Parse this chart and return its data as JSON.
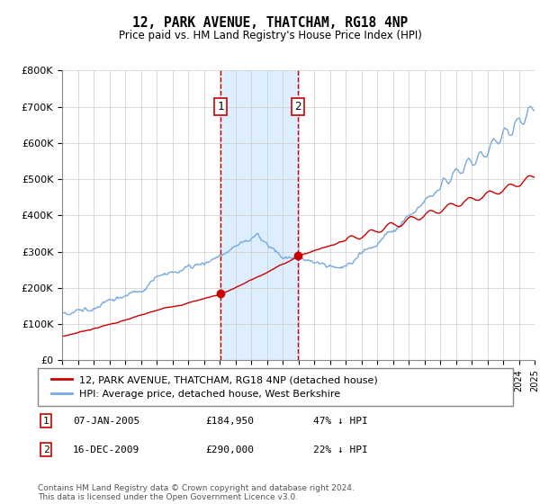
{
  "title": "12, PARK AVENUE, THATCHAM, RG18 4NP",
  "subtitle": "Price paid vs. HM Land Registry's House Price Index (HPI)",
  "x_start_year": 1995,
  "x_end_year": 2025,
  "y_max": 800000,
  "y_ticks": [
    0,
    100000,
    200000,
    300000,
    400000,
    500000,
    600000,
    700000,
    800000
  ],
  "y_tick_labels": [
    "£0",
    "£100K",
    "£200K",
    "£300K",
    "£400K",
    "£500K",
    "£600K",
    "£700K",
    "£800K"
  ],
  "transaction1_year": 2005.05,
  "transaction1_price": 184950,
  "transaction1_label": "1",
  "transaction1_date": "07-JAN-2005",
  "transaction1_hpi": "47% ↓ HPI",
  "transaction2_year": 2009.96,
  "transaction2_price": 290000,
  "transaction2_label": "2",
  "transaction2_date": "16-DEC-2009",
  "transaction2_hpi": "22% ↓ HPI",
  "red_line_color": "#cc0000",
  "blue_line_color": "#7aaadd",
  "shading_color": "#ddeeff",
  "grid_color": "#cccccc",
  "background_color": "#ffffff",
  "legend_label_red": "12, PARK AVENUE, THATCHAM, RG18 4NP (detached house)",
  "legend_label_blue": "HPI: Average price, detached house, West Berkshire",
  "footnote": "Contains HM Land Registry data © Crown copyright and database right 2024.\nThis data is licensed under the Open Government Licence v3.0.",
  "table_row1": [
    "1",
    "07-JAN-2005",
    "£184,950",
    "47% ↓ HPI"
  ],
  "table_row2": [
    "2",
    "16-DEC-2009",
    "£290,000",
    "22% ↓ HPI"
  ]
}
